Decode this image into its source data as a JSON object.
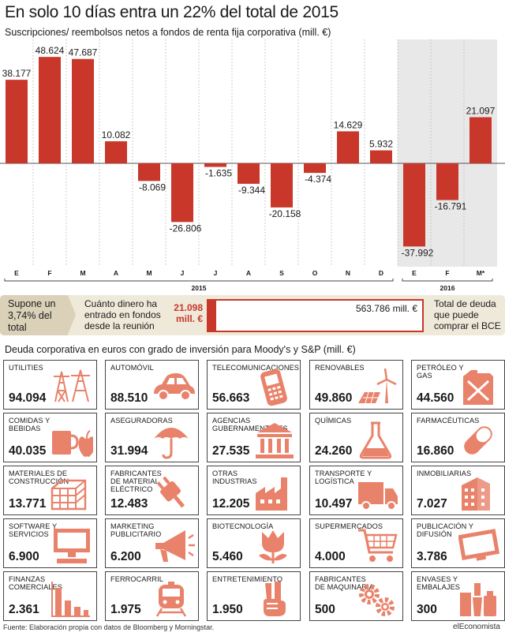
{
  "header": {
    "title": "En solo 10 días entra un 22% del total de 2015",
    "subtitle": "Suscripciones/ reembolsos netos a fondos de renta fija corporativa (mill. €)"
  },
  "chart_data": {
    "type": "bar",
    "categories": [
      "E",
      "F",
      "M",
      "A",
      "M",
      "J",
      "J",
      "A",
      "S",
      "O",
      "N",
      "D",
      "E",
      "F",
      "M*"
    ],
    "values": [
      38177,
      48624,
      47687,
      10082,
      -8069,
      -26806,
      -1635,
      -9344,
      -20158,
      -4374,
      14629,
      5932,
      -37992,
      -16791,
      21097
    ],
    "value_labels": [
      "38.177",
      "48.624",
      "47.687",
      "10.082",
      "-8.069",
      "-26.806",
      "-1.635",
      "-9.344",
      "-20.158",
      "-4.374",
      "14.629",
      "5.932",
      "-37.992",
      "-16.791",
      "21.097"
    ],
    "year_groups": [
      {
        "label": "2015",
        "from": 0,
        "to": 11
      },
      {
        "label": "2016",
        "from": 12,
        "to": 14
      }
    ],
    "ylim": [
      -48000,
      53000
    ],
    "color": "#c8372a"
  },
  "bce": {
    "left_text": "Supone un 3,74% del total",
    "question": "Cuánto dinero ha entrado en fondos desde la reunión",
    "entered_value": "21.098 mill. €",
    "entered_amount": 21098,
    "total_value": "563.786 mill. €",
    "total_amount": 563786,
    "right_text": "Total de deuda que puede comprar el BCE",
    "color": "#c8372a"
  },
  "sectors": {
    "title": "Deuda corporativa en euros con grado de inversión para Moody's y S&P (mill. €)",
    "icon_color": "#e9826a",
    "items": [
      {
        "label": "UTILITIES",
        "value": "94.094",
        "icon": "power-tower-icon"
      },
      {
        "label": "AUTOMÓVIL",
        "value": "88.510",
        "icon": "car-icon"
      },
      {
        "label": "TELECOMUNICACIONES",
        "value": "56.663",
        "icon": "mobile-phone-icon"
      },
      {
        "label": "RENOVABLES",
        "value": "49.860",
        "icon": "wind-solar-icon"
      },
      {
        "label": "PETRÓLEO Y GAS",
        "value": "44.560",
        "icon": "jerrycan-icon"
      },
      {
        "label": "COMIDAS Y BEBIDAS",
        "value": "40.035",
        "icon": "mug-apple-icon"
      },
      {
        "label": "ASEGURADORAS",
        "value": "31.994",
        "icon": "umbrella-icon"
      },
      {
        "label": "AGENCIAS GUBERNAMENTALES",
        "value": "27.535",
        "icon": "government-building-icon"
      },
      {
        "label": "QUÍMICAS",
        "value": "24.260",
        "icon": "flask-icon"
      },
      {
        "label": "FARMACÉUTICAS",
        "value": "16.860",
        "icon": "pill-icon"
      },
      {
        "label": "MATERIALES DE CONSTRUCCIÓN",
        "value": "13.771",
        "icon": "bricks-icon"
      },
      {
        "label": "FABRICANTES DE MATERIAL ELÉCTRICO",
        "value": "12.483",
        "icon": "plug-icon"
      },
      {
        "label": "OTRAS INDUSTRIAS",
        "value": "12.205",
        "icon": "factory-icon"
      },
      {
        "label": "TRANSPORTE Y LOGÍSTICA",
        "value": "10.497",
        "icon": "truck-icon"
      },
      {
        "label": "INMOBILIARIAS",
        "value": "7.027",
        "icon": "apartment-building-icon"
      },
      {
        "label": "SOFTWARE Y SERVICIOS",
        "value": "6.900",
        "icon": "computer-icon"
      },
      {
        "label": "MARKETING PUBLICITARIO",
        "value": "6.200",
        "icon": "megaphone-icon"
      },
      {
        "label": "BIOTECNOLOGÍA",
        "value": "5.460",
        "icon": "tulip-icon"
      },
      {
        "label": "SUPERMERCADOS",
        "value": "4.000",
        "icon": "shopping-cart-icon"
      },
      {
        "label": "PUBLICACIÓN Y DIFUSIÓN",
        "value": "3.786",
        "icon": "television-icon"
      },
      {
        "label": "FINANZAS COMERCIALES",
        "value": "2.361",
        "icon": "bar-chart-icon"
      },
      {
        "label": "FERROCARRIL",
        "value": "1.975",
        "icon": "train-icon"
      },
      {
        "label": "ENTRETENIMIENTO",
        "value": "1.950",
        "icon": "victory-hand-icon"
      },
      {
        "label": "FABRICANTES DE MAQUINARIA",
        "value": "500",
        "icon": "gears-icon"
      },
      {
        "label": "ENVASES Y EMBALAJES",
        "value": "300",
        "icon": "packaging-icon"
      }
    ]
  },
  "footer": {
    "source": "Fuente: Elaboración propia con datos de Bloomberg y Morningstar.",
    "brand": "elEconomista"
  }
}
